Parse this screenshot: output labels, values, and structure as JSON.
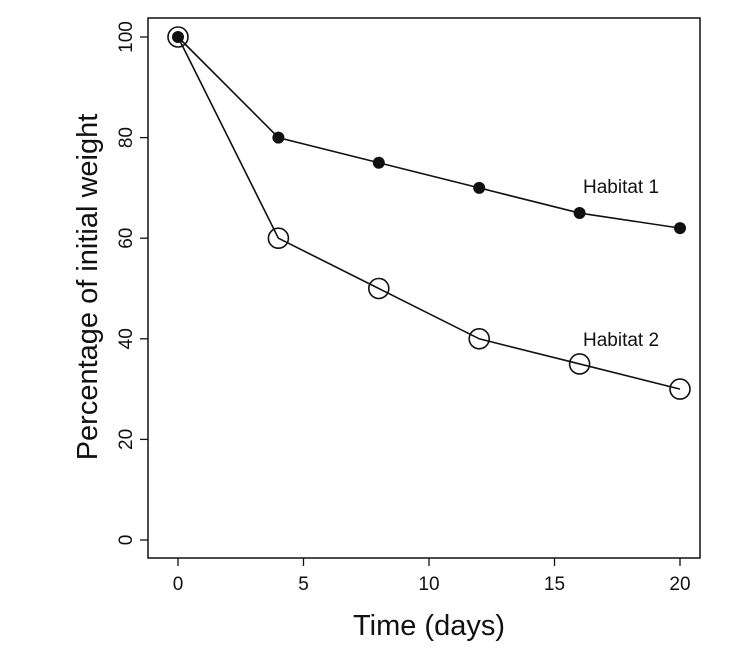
{
  "chart_data": {
    "type": "line",
    "title": "",
    "xlabel": "Time (days)",
    "ylabel": "Percentage of initial weight",
    "xlim": [
      0,
      20
    ],
    "ylim": [
      0,
      100
    ],
    "xticks": [
      0,
      5,
      10,
      15,
      20
    ],
    "yticks": [
      0,
      20,
      40,
      60,
      80,
      100
    ],
    "grid": false,
    "x": [
      0,
      4,
      8,
      12,
      16,
      20
    ],
    "series": [
      {
        "name": "Habitat 1",
        "marker": "filled-circle",
        "values": [
          100,
          80,
          75,
          70,
          65,
          62
        ]
      },
      {
        "name": "Habitat 2",
        "marker": "open-circle",
        "values": [
          100,
          60,
          50,
          40,
          35,
          30
        ]
      }
    ],
    "colors": {
      "line": "#111111",
      "marker_fill": "#111111",
      "open_marker_fill": "#ffffff"
    }
  }
}
